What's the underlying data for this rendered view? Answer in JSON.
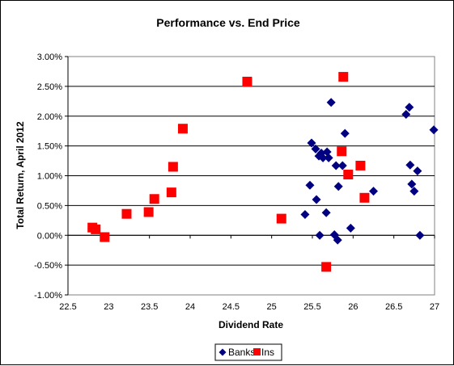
{
  "chart_data": {
    "type": "scatter",
    "title": "Performance vs. End Price",
    "xlabel": "Dividend Rate",
    "ylabel": "Total Return, April 2012",
    "xlim": [
      22.5,
      27
    ],
    "ylim": [
      -1.0,
      3.0
    ],
    "x_ticks": [
      "22.5",
      "23",
      "23.5",
      "24",
      "24.5",
      "25",
      "25.5",
      "26",
      "26.5",
      "27"
    ],
    "y_ticks": [
      "3.00%",
      "2.50%",
      "2.00%",
      "1.50%",
      "1.00%",
      "0.50%",
      "0.00%",
      "-0.50%",
      "-1.00%"
    ],
    "grid": "horizontal",
    "legend_position": "bottom",
    "series": [
      {
        "name": "Banks",
        "marker": "diamond",
        "color": "#000080",
        "points": [
          [
            25.41,
            0.35
          ],
          [
            25.47,
            0.84
          ],
          [
            25.49,
            1.55
          ],
          [
            25.54,
            1.45
          ],
          [
            25.55,
            0.6
          ],
          [
            25.58,
            1.33
          ],
          [
            25.59,
            0.0
          ],
          [
            25.61,
            1.38
          ],
          [
            25.63,
            1.3
          ],
          [
            25.67,
            0.38
          ],
          [
            25.68,
            1.4
          ],
          [
            25.7,
            1.3
          ],
          [
            25.73,
            2.23
          ],
          [
            25.77,
            0.01
          ],
          [
            25.79,
            1.17
          ],
          [
            25.81,
            -0.08
          ],
          [
            25.82,
            0.82
          ],
          [
            25.87,
            1.17
          ],
          [
            25.9,
            1.71
          ],
          [
            25.97,
            0.12
          ],
          [
            26.25,
            0.74
          ],
          [
            26.65,
            2.03
          ],
          [
            26.69,
            2.15
          ],
          [
            26.7,
            1.18
          ],
          [
            26.72,
            0.86
          ],
          [
            26.75,
            0.74
          ],
          [
            26.79,
            1.08
          ],
          [
            26.82,
            0.0
          ],
          [
            26.99,
            1.77
          ]
        ]
      },
      {
        "name": "Ins",
        "marker": "square",
        "color": "#ff0000",
        "points": [
          [
            22.8,
            0.13
          ],
          [
            22.84,
            0.1
          ],
          [
            22.95,
            -0.03
          ],
          [
            23.22,
            0.36
          ],
          [
            23.49,
            0.39
          ],
          [
            23.56,
            0.61
          ],
          [
            23.77,
            0.72
          ],
          [
            23.79,
            1.15
          ],
          [
            23.91,
            1.79
          ],
          [
            24.7,
            2.58
          ],
          [
            25.12,
            0.28
          ],
          [
            25.67,
            -0.53
          ],
          [
            25.86,
            1.41
          ],
          [
            25.88,
            2.66
          ],
          [
            25.94,
            1.02
          ],
          [
            26.09,
            1.17
          ],
          [
            26.14,
            0.63
          ]
        ]
      }
    ]
  }
}
